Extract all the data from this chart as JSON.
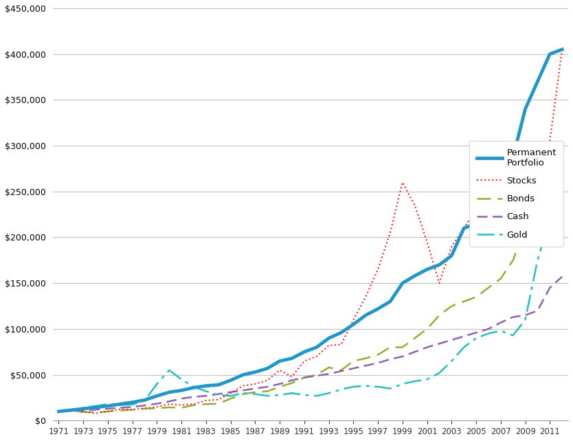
{
  "years": [
    1971,
    1972,
    1973,
    1974,
    1975,
    1976,
    1977,
    1978,
    1979,
    1980,
    1981,
    1982,
    1983,
    1984,
    1985,
    1986,
    1987,
    1988,
    1989,
    1990,
    1991,
    1992,
    1993,
    1994,
    1995,
    1996,
    1997,
    1998,
    1999,
    2000,
    2001,
    2002,
    2003,
    2004,
    2005,
    2006,
    2007,
    2008,
    2009,
    2010,
    2011,
    2012
  ],
  "permanent_portfolio": [
    10000,
    11500,
    13000,
    14500,
    16000,
    18000,
    20000,
    22500,
    27000,
    31000,
    33000,
    36000,
    38000,
    39000,
    44000,
    50000,
    53000,
    57000,
    65000,
    68000,
    75000,
    80000,
    90000,
    96000,
    105000,
    115000,
    122000,
    130000,
    150000,
    158000,
    165000,
    170000,
    180000,
    210000,
    215000,
    250000,
    290000,
    287000,
    340000,
    370000,
    400000,
    405000
  ],
  "stocks": [
    10000,
    11500,
    9500,
    8000,
    10000,
    12500,
    12000,
    13500,
    15000,
    18000,
    17000,
    18000,
    22000,
    23000,
    30000,
    38000,
    40000,
    44000,
    55000,
    48000,
    65000,
    70000,
    82000,
    83000,
    110000,
    135000,
    165000,
    205000,
    260000,
    235000,
    195000,
    150000,
    190000,
    210000,
    230000,
    270000,
    295000,
    190000,
    237000,
    270000,
    305000,
    405000
  ],
  "bonds": [
    10000,
    10500,
    9500,
    9000,
    10000,
    11000,
    12000,
    13000,
    13500,
    14500,
    14000,
    17000,
    18000,
    18500,
    24000,
    29000,
    31000,
    32000,
    37000,
    41000,
    47000,
    50000,
    58000,
    55000,
    65000,
    68000,
    72000,
    80000,
    80000,
    90000,
    100000,
    115000,
    125000,
    130000,
    135000,
    145000,
    155000,
    175000,
    210000,
    230000,
    260000,
    265000
  ],
  "cash": [
    10000,
    10500,
    11000,
    12000,
    13000,
    14000,
    15000,
    16500,
    18500,
    21000,
    24000,
    26000,
    27000,
    29000,
    31000,
    33000,
    35000,
    37000,
    40000,
    44000,
    47000,
    49000,
    51000,
    54000,
    57000,
    60000,
    63000,
    67000,
    70000,
    75000,
    80000,
    84000,
    88000,
    92000,
    96000,
    100000,
    107000,
    113000,
    115000,
    120000,
    145000,
    157000
  ],
  "gold": [
    10000,
    11000,
    14000,
    16000,
    18000,
    17000,
    17500,
    22000,
    40000,
    55000,
    45000,
    37000,
    32000,
    28000,
    27000,
    30000,
    29000,
    27000,
    28000,
    30000,
    28000,
    27000,
    30000,
    34000,
    37000,
    38000,
    37000,
    35000,
    40000,
    43000,
    45000,
    52000,
    65000,
    80000,
    90000,
    95000,
    98000,
    93000,
    110000,
    175000,
    220000,
    302000
  ],
  "permanent_color": "#2196C8",
  "stocks_color": "#FF2020",
  "bonds_color": "#90B030",
  "cash_color": "#9060B0",
  "gold_color": "#20C0C0",
  "background_color": "#FFFFFF",
  "grid_color": "#C0C0C0",
  "ylim": [
    0,
    450000
  ],
  "yticks": [
    0,
    50000,
    100000,
    150000,
    200000,
    250000,
    300000,
    350000,
    400000,
    450000
  ]
}
